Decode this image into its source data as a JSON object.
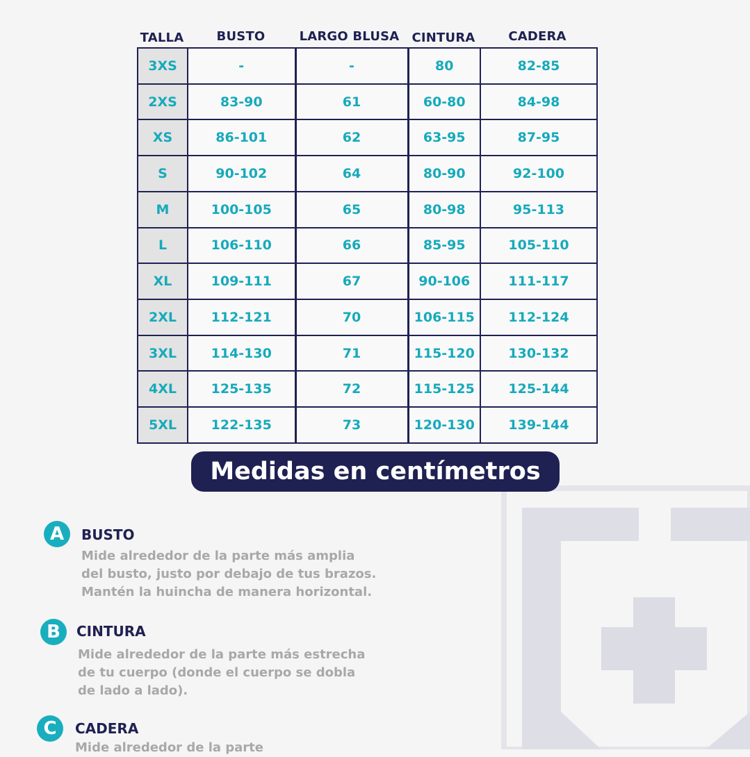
{
  "table": {
    "headers": [
      "TALLA",
      "BUSTO",
      "LARGO BLUSA",
      "CINTURA",
      "CADERA"
    ],
    "rows": [
      [
        "3XS",
        "-",
        "-",
        "80",
        "82-85"
      ],
      [
        "2XS",
        "83-90",
        "61",
        "60-80",
        "84-98"
      ],
      [
        "XS",
        "86-101",
        "62",
        "63-95",
        "87-95"
      ],
      [
        "S",
        "90-102",
        "64",
        "80-90",
        "92-100"
      ],
      [
        "M",
        "100-105",
        "65",
        "80-98",
        "95-113"
      ],
      [
        "L",
        "106-110",
        "66",
        "85-95",
        "105-110"
      ],
      [
        "XL",
        "109-111",
        "67",
        "90-106",
        "111-117"
      ],
      [
        "2XL",
        "112-121",
        "70",
        "106-115",
        "112-124"
      ],
      [
        "3XL",
        "114-130",
        "71",
        "115-120",
        "130-132"
      ],
      [
        "4XL",
        "125-135",
        "72",
        "115-125",
        "125-144"
      ],
      [
        "5XL",
        "122-135",
        "73",
        "120-130",
        "139-144"
      ]
    ]
  },
  "units_banner": "Medidas en centímetros",
  "guide": [
    {
      "badge": "A",
      "title": "BUSTO",
      "lines": [
        "Mide alrededor de la parte más amplia",
        "del busto, justo por debajo de tus brazos.",
        "Mantén la huincha de manera horizontal."
      ]
    },
    {
      "badge": "B",
      "title": "CINTURA",
      "lines": [
        "Mide alrededor de la parte más estrecha",
        "de tu cuerpo (donde el cuerpo se dobla",
        "de lado a lado)."
      ]
    },
    {
      "badge": "C",
      "title": "CADERA",
      "lines": [
        "Mide alrededor de la parte"
      ]
    }
  ],
  "colors": {
    "navy": "#1f2152",
    "teal": "#16aabb",
    "size_cell_bg": "#e3e3e3",
    "background": "#f5f5f5",
    "watermark": "#e0e0e6"
  },
  "icons": {
    "watermark": "shield-cross-icon"
  }
}
